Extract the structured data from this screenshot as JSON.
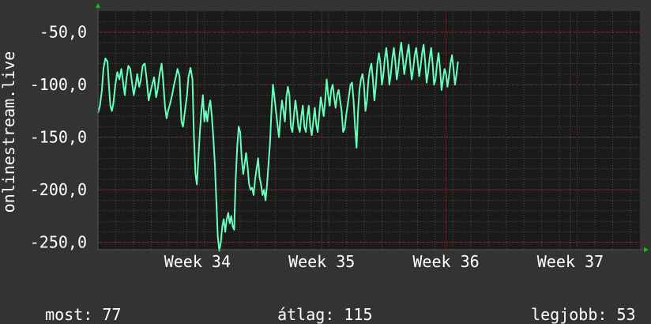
{
  "chart_data": {
    "type": "line",
    "ylabel": "onlinestream.live",
    "y_ticks": [
      "-50,0",
      "-100,0",
      "-150,0",
      "-200,0",
      "-250,0"
    ],
    "y_tick_values": [
      -50,
      -100,
      -150,
      -200,
      -250
    ],
    "x_ticks": [
      "Week 34",
      "Week 35",
      "Week 36",
      "Week 37"
    ],
    "x_tick_positions": [
      4,
      9,
      14,
      19
    ],
    "xlim": [
      0,
      21.8
    ],
    "ylim": [
      -257,
      -30
    ],
    "grid": true,
    "colors": {
      "background": "#333333",
      "plot_bg": "#1a1a1a",
      "line": "#66ffbb",
      "grid": "#4a4a4a",
      "axis_arrow": "#00cc00"
    },
    "series": [
      {
        "values": [
          [
            0.0,
            -127
          ],
          [
            0.08,
            -120
          ],
          [
            0.16,
            -105
          ],
          [
            0.22,
            -85
          ],
          [
            0.3,
            -75
          ],
          [
            0.38,
            -78
          ],
          [
            0.44,
            -100
          ],
          [
            0.5,
            -120
          ],
          [
            0.56,
            -125
          ],
          [
            0.62,
            -118
          ],
          [
            0.7,
            -100
          ],
          [
            0.78,
            -88
          ],
          [
            0.86,
            -95
          ],
          [
            0.94,
            -85
          ],
          [
            1.02,
            -100
          ],
          [
            1.08,
            -110
          ],
          [
            1.14,
            -95
          ],
          [
            1.22,
            -82
          ],
          [
            1.3,
            -85
          ],
          [
            1.38,
            -100
          ],
          [
            1.44,
            -110
          ],
          [
            1.52,
            -100
          ],
          [
            1.58,
            -90
          ],
          [
            1.66,
            -102
          ],
          [
            1.72,
            -96
          ],
          [
            1.8,
            -82
          ],
          [
            1.88,
            -80
          ],
          [
            1.96,
            -95
          ],
          [
            2.04,
            -115
          ],
          [
            2.1,
            -108
          ],
          [
            2.18,
            -100
          ],
          [
            2.26,
            -93
          ],
          [
            2.34,
            -112
          ],
          [
            2.4,
            -105
          ],
          [
            2.48,
            -90
          ],
          [
            2.56,
            -80
          ],
          [
            2.62,
            -95
          ],
          [
            2.7,
            -122
          ],
          [
            2.76,
            -132
          ],
          [
            2.82,
            -125
          ],
          [
            2.9,
            -118
          ],
          [
            2.98,
            -110
          ],
          [
            3.06,
            -100
          ],
          [
            3.14,
            -92
          ],
          [
            3.2,
            -85
          ],
          [
            3.28,
            -92
          ],
          [
            3.36,
            -135
          ],
          [
            3.42,
            -140
          ],
          [
            3.5,
            -125
          ],
          [
            3.58,
            -110
          ],
          [
            3.64,
            -93
          ],
          [
            3.72,
            -84
          ],
          [
            3.8,
            -95
          ],
          [
            3.86,
            -150
          ],
          [
            3.92,
            -185
          ],
          [
            3.98,
            -195
          ],
          [
            4.04,
            -170
          ],
          [
            4.1,
            -145
          ],
          [
            4.16,
            -125
          ],
          [
            4.22,
            -110
          ],
          [
            4.28,
            -135
          ],
          [
            4.34,
            -125
          ],
          [
            4.4,
            -135
          ],
          [
            4.46,
            -122
          ],
          [
            4.52,
            -115
          ],
          [
            4.58,
            -130
          ],
          [
            4.64,
            -150
          ],
          [
            4.7,
            -175
          ],
          [
            4.76,
            -210
          ],
          [
            4.82,
            -245
          ],
          [
            4.88,
            -258
          ],
          [
            4.94,
            -250
          ],
          [
            5.0,
            -235
          ],
          [
            5.06,
            -228
          ],
          [
            5.12,
            -240
          ],
          [
            5.18,
            -228
          ],
          [
            5.24,
            -222
          ],
          [
            5.3,
            -232
          ],
          [
            5.36,
            -225
          ],
          [
            5.42,
            -235
          ],
          [
            5.48,
            -238
          ],
          [
            5.54,
            -190
          ],
          [
            5.6,
            -160
          ],
          [
            5.66,
            -140
          ],
          [
            5.72,
            -145
          ],
          [
            5.78,
            -170
          ],
          [
            5.84,
            -185
          ],
          [
            5.9,
            -175
          ],
          [
            5.96,
            -165
          ],
          [
            6.02,
            -178
          ],
          [
            6.08,
            -195
          ],
          [
            6.14,
            -200
          ],
          [
            6.2,
            -198
          ],
          [
            6.26,
            -205
          ],
          [
            6.32,
            -190
          ],
          [
            6.38,
            -180
          ],
          [
            6.44,
            -170
          ],
          [
            6.5,
            -188
          ],
          [
            6.56,
            -195
          ],
          [
            6.62,
            -205
          ],
          [
            6.68,
            -200
          ],
          [
            6.74,
            -210
          ],
          [
            6.8,
            -195
          ],
          [
            6.86,
            -175
          ],
          [
            6.92,
            -155
          ],
          [
            6.98,
            -125
          ],
          [
            7.04,
            -100
          ],
          [
            7.1,
            -112
          ],
          [
            7.16,
            -125
          ],
          [
            7.22,
            -138
          ],
          [
            7.28,
            -150
          ],
          [
            7.34,
            -130
          ],
          [
            7.4,
            -115
          ],
          [
            7.46,
            -125
          ],
          [
            7.52,
            -135
          ],
          [
            7.58,
            -112
          ],
          [
            7.64,
            -102
          ],
          [
            7.7,
            -110
          ],
          [
            7.76,
            -140
          ],
          [
            7.82,
            -145
          ],
          [
            7.88,
            -130
          ],
          [
            7.94,
            -115
          ],
          [
            8.0,
            -125
          ],
          [
            8.06,
            -140
          ],
          [
            8.12,
            -145
          ],
          [
            8.18,
            -130
          ],
          [
            8.24,
            -120
          ],
          [
            8.3,
            -140
          ],
          [
            8.36,
            -145
          ],
          [
            8.42,
            -130
          ],
          [
            8.48,
            -120
          ],
          [
            8.54,
            -140
          ],
          [
            8.6,
            -148
          ],
          [
            8.66,
            -135
          ],
          [
            8.72,
            -122
          ],
          [
            8.78,
            -138
          ],
          [
            8.84,
            -145
          ],
          [
            8.9,
            -128
          ],
          [
            8.96,
            -112
          ],
          [
            9.02,
            -120
          ],
          [
            9.08,
            -130
          ],
          [
            9.14,
            -115
          ],
          [
            9.2,
            -95
          ],
          [
            9.26,
            -110
          ],
          [
            9.32,
            -120
          ],
          [
            9.38,
            -105
          ],
          [
            9.44,
            -100
          ],
          [
            9.5,
            -112
          ],
          [
            9.56,
            -122
          ],
          [
            9.62,
            -110
          ],
          [
            9.68,
            -105
          ],
          [
            9.74,
            -115
          ],
          [
            9.8,
            -125
          ],
          [
            9.86,
            -145
          ],
          [
            9.92,
            -142
          ],
          [
            9.98,
            -130
          ],
          [
            10.04,
            -120
          ],
          [
            10.1,
            -110
          ],
          [
            10.16,
            -100
          ],
          [
            10.22,
            -98
          ],
          [
            10.28,
            -115
          ],
          [
            10.34,
            -140
          ],
          [
            10.4,
            -160
          ],
          [
            10.46,
            -125
          ],
          [
            10.52,
            -105
          ],
          [
            10.58,
            -95
          ],
          [
            10.64,
            -90
          ],
          [
            10.7,
            -100
          ],
          [
            10.76,
            -125
          ],
          [
            10.82,
            -115
          ],
          [
            10.88,
            -95
          ],
          [
            10.94,
            -85
          ],
          [
            11.0,
            -80
          ],
          [
            11.06,
            -95
          ],
          [
            11.12,
            -115
          ],
          [
            11.18,
            -100
          ],
          [
            11.24,
            -80
          ],
          [
            11.3,
            -70
          ],
          [
            11.36,
            -80
          ],
          [
            11.42,
            -100
          ],
          [
            11.48,
            -90
          ],
          [
            11.54,
            -75
          ],
          [
            11.6,
            -65
          ],
          [
            11.66,
            -80
          ],
          [
            11.72,
            -100
          ],
          [
            11.78,
            -90
          ],
          [
            11.84,
            -75
          ],
          [
            11.9,
            -65
          ],
          [
            11.96,
            -78
          ],
          [
            12.02,
            -95
          ],
          [
            12.08,
            -85
          ],
          [
            12.14,
            -70
          ],
          [
            12.2,
            -60
          ],
          [
            12.26,
            -75
          ],
          [
            12.32,
            -90
          ],
          [
            12.38,
            -80
          ],
          [
            12.44,
            -70
          ],
          [
            12.5,
            -62
          ],
          [
            12.56,
            -80
          ],
          [
            12.62,
            -95
          ],
          [
            12.68,
            -85
          ],
          [
            12.74,
            -72
          ],
          [
            12.8,
            -65
          ],
          [
            12.86,
            -78
          ],
          [
            12.92,
            -92
          ],
          [
            12.98,
            -82
          ],
          [
            13.04,
            -70
          ],
          [
            13.1,
            -62
          ],
          [
            13.16,
            -78
          ],
          [
            13.22,
            -98
          ],
          [
            13.28,
            -88
          ],
          [
            13.34,
            -75
          ],
          [
            13.4,
            -65
          ],
          [
            13.46,
            -80
          ],
          [
            13.52,
            -100
          ],
          [
            13.58,
            -95
          ],
          [
            13.64,
            -80
          ],
          [
            13.7,
            -70
          ],
          [
            13.76,
            -85
          ],
          [
            13.82,
            -105
          ],
          [
            13.88,
            -95
          ],
          [
            13.94,
            -85
          ],
          [
            14.0,
            -90
          ],
          [
            14.06,
            -102
          ],
          [
            14.12,
            -92
          ],
          [
            14.18,
            -80
          ],
          [
            14.24,
            -72
          ],
          [
            14.3,
            -85
          ],
          [
            14.36,
            -100
          ],
          [
            14.42,
            -90
          ],
          [
            14.48,
            -78
          ]
        ]
      }
    ]
  },
  "stats": {
    "current_label": "most:",
    "current_value": "77",
    "avg_label": "átlag:",
    "avg_value": "115",
    "best_label": "legjobb:",
    "best_value": "53"
  }
}
